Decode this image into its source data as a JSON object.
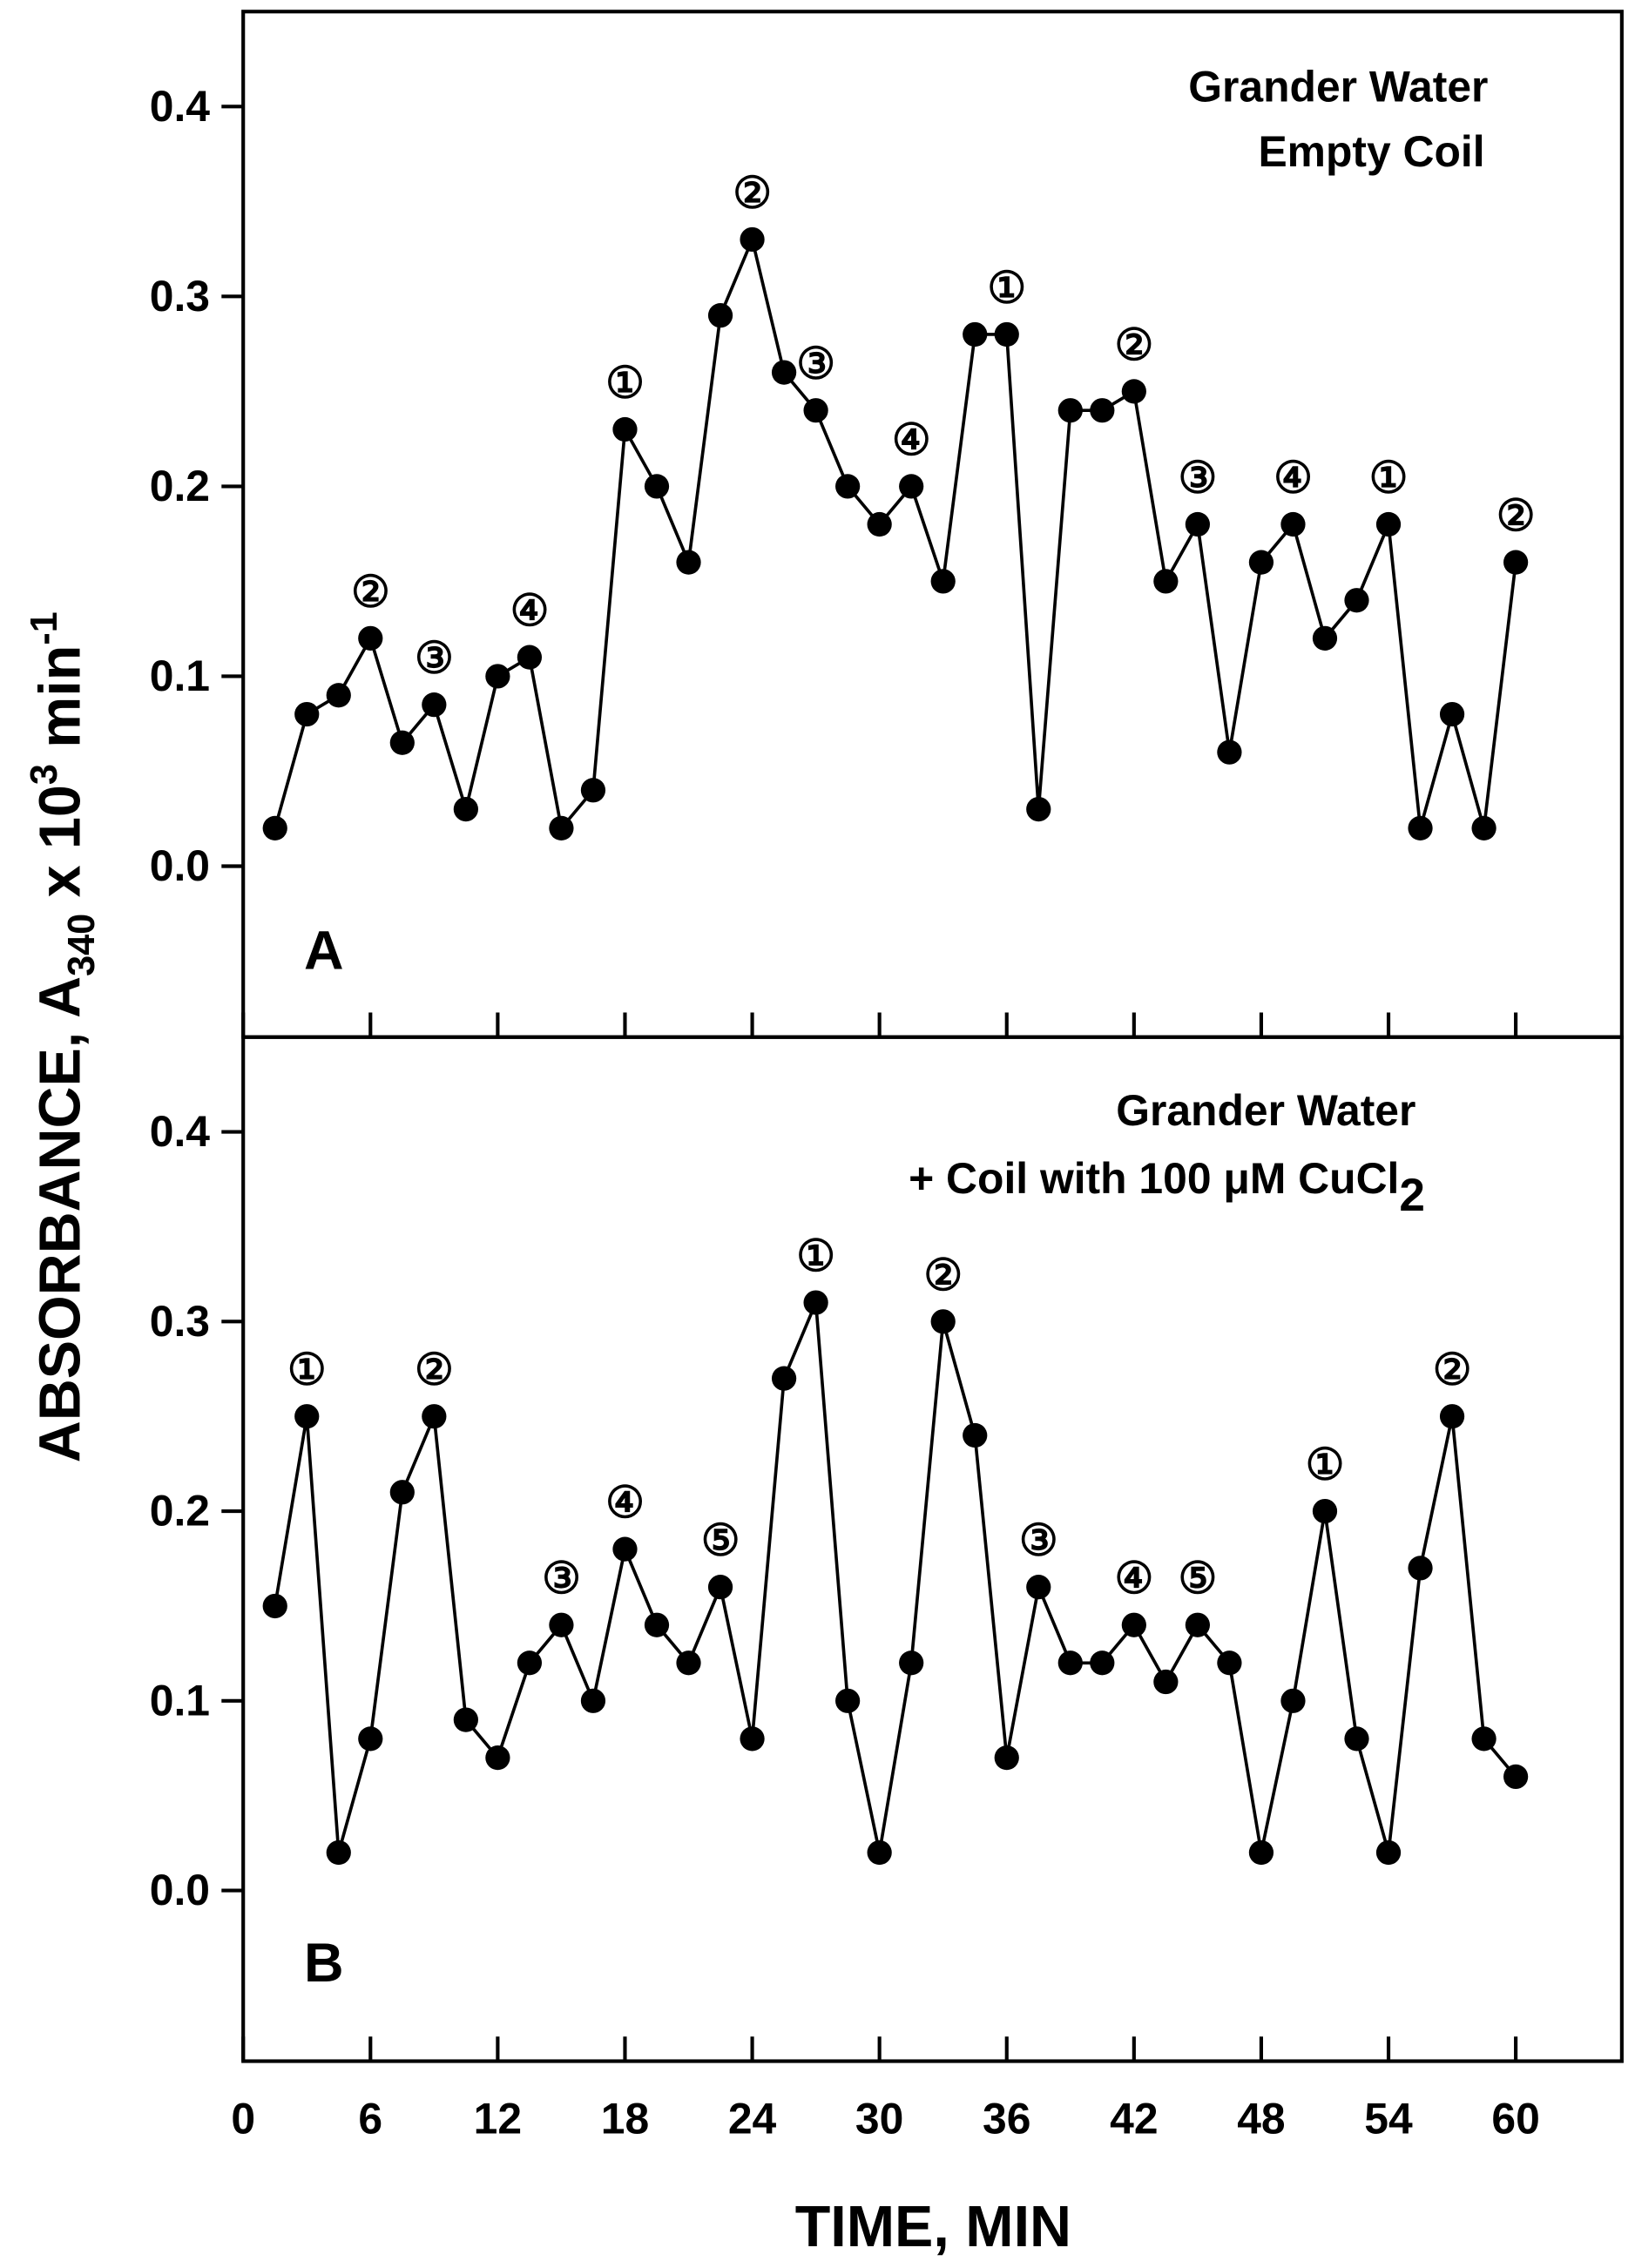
{
  "chart_data": [
    {
      "type": "line",
      "panel_label": "A",
      "title_lines": [
        "Grander Water",
        "Empty Coil"
      ],
      "xlim": [
        0,
        65
      ],
      "ylim": [
        -0.09,
        0.45
      ],
      "x_ticks": [
        0,
        6,
        12,
        18,
        24,
        30,
        36,
        42,
        48,
        54,
        60
      ],
      "y_ticks": [
        0.0,
        0.1,
        0.2,
        0.3,
        0.4
      ],
      "y_tick_labels": [
        "0.0",
        "0.1",
        "0.2",
        "0.3",
        "0.4"
      ],
      "x": [
        1.5,
        3,
        4.5,
        6,
        7.5,
        9,
        10.5,
        12,
        13.5,
        15,
        16.5,
        18,
        19.5,
        21,
        22.5,
        24,
        25.5,
        27,
        28.5,
        30,
        31.5,
        33,
        34.5,
        36,
        37.5,
        39,
        40.5,
        42,
        43.5,
        45,
        46.5,
        48,
        49.5,
        51,
        52.5,
        54,
        55.5,
        57,
        58.5,
        60
      ],
      "y": [
        0.02,
        0.08,
        0.09,
        0.12,
        0.065,
        0.085,
        0.03,
        0.1,
        0.11,
        0.02,
        0.04,
        0.23,
        0.2,
        0.16,
        0.29,
        0.33,
        0.26,
        0.24,
        0.2,
        0.18,
        0.2,
        0.15,
        0.28,
        0.28,
        0.03,
        0.24,
        0.24,
        0.25,
        0.15,
        0.18,
        0.06,
        0.16,
        0.18,
        0.12,
        0.14,
        0.18,
        0.02,
        0.08,
        0.02,
        0.16
      ],
      "annotations": [
        {
          "x": 6,
          "label": "②"
        },
        {
          "x": 9,
          "label": "③"
        },
        {
          "x": 13.5,
          "label": "④"
        },
        {
          "x": 18,
          "label": "①"
        },
        {
          "x": 24,
          "label": "②"
        },
        {
          "x": 27,
          "label": "③"
        },
        {
          "x": 31.5,
          "label": "④"
        },
        {
          "x": 36,
          "label": "①"
        },
        {
          "x": 42,
          "label": "②"
        },
        {
          "x": 45,
          "label": "③"
        },
        {
          "x": 49.5,
          "label": "④"
        },
        {
          "x": 54,
          "label": "①"
        },
        {
          "x": 60,
          "label": "②"
        }
      ]
    },
    {
      "type": "line",
      "panel_label": "B",
      "title_lines": [
        "Grander Water",
        "+ Coil with 100 μM CuCl",
        "2"
      ],
      "xlim": [
        0,
        65
      ],
      "ylim": [
        -0.09,
        0.45
      ],
      "x_ticks": [
        0,
        6,
        12,
        18,
        24,
        30,
        36,
        42,
        48,
        54,
        60
      ],
      "x_tick_labels": [
        "0",
        "6",
        "12",
        "18",
        "24",
        "30",
        "36",
        "42",
        "48",
        "54",
        "60"
      ],
      "y_ticks": [
        0.0,
        0.1,
        0.2,
        0.3,
        0.4
      ],
      "y_tick_labels": [
        "0.0",
        "0.1",
        "0.2",
        "0.3",
        "0.4"
      ],
      "x": [
        1.5,
        3,
        4.5,
        6,
        7.5,
        9,
        10.5,
        12,
        13.5,
        15,
        16.5,
        18,
        19.5,
        21,
        22.5,
        24,
        25.5,
        27,
        28.5,
        30,
        31.5,
        33,
        34.5,
        36,
        37.5,
        39,
        40.5,
        42,
        43.5,
        45,
        46.5,
        48,
        49.5,
        51,
        52.5,
        54,
        55.5,
        57,
        58.5,
        60
      ],
      "y": [
        0.15,
        0.25,
        0.02,
        0.08,
        0.21,
        0.25,
        0.09,
        0.07,
        0.12,
        0.14,
        0.1,
        0.18,
        0.14,
        0.12,
        0.16,
        0.08,
        0.27,
        0.31,
        0.1,
        0.02,
        0.12,
        0.3,
        0.24,
        0.07,
        0.16,
        0.12,
        0.12,
        0.14,
        0.11,
        0.14,
        0.12,
        0.02,
        0.1,
        0.2,
        0.08,
        0.02,
        0.17,
        0.25,
        0.08,
        0.06
      ],
      "annotations": [
        {
          "x": 3,
          "label": "①"
        },
        {
          "x": 9,
          "label": "②"
        },
        {
          "x": 15,
          "label": "③"
        },
        {
          "x": 18,
          "label": "④"
        },
        {
          "x": 22.5,
          "label": "⑤"
        },
        {
          "x": 27,
          "label": "①"
        },
        {
          "x": 33,
          "label": "②"
        },
        {
          "x": 37.5,
          "label": "③"
        },
        {
          "x": 42,
          "label": "④"
        },
        {
          "x": 45,
          "label": "⑤"
        },
        {
          "x": 51,
          "label": "①"
        },
        {
          "x": 57,
          "label": "②"
        }
      ]
    }
  ],
  "axes": {
    "xlabel": "TIME, MIN",
    "ylabel_main": "ABSORBANCE, A",
    "ylabel_sub": "340",
    "ylabel_mid": " x 10",
    "ylabel_sup": "3",
    "ylabel_unit": " min",
    "ylabel_unit_sup": "-1"
  }
}
